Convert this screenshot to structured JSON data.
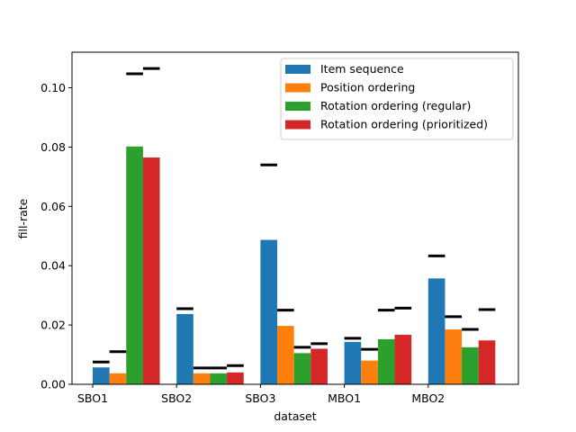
{
  "chart_data": {
    "type": "bar",
    "title": "",
    "xlabel": "dataset",
    "ylabel": "fill-rate",
    "ylim": [
      0,
      0.112
    ],
    "yticks": [
      0.0,
      0.02,
      0.04,
      0.06,
      0.08,
      0.1
    ],
    "ytick_labels": [
      "0.00",
      "0.02",
      "0.04",
      "0.06",
      "0.08",
      "0.10"
    ],
    "categories": [
      "SBO1",
      "SBO2",
      "SBO3",
      "MBO1",
      "MBO2"
    ],
    "series": [
      {
        "name": "Item sequence",
        "color": "#1f77b4",
        "values": [
          0.0057,
          0.0237,
          0.0487,
          0.0143,
          0.0357
        ],
        "markers": [
          0.0075,
          0.0255,
          0.074,
          0.0155,
          0.0433
        ]
      },
      {
        "name": "Position ordering",
        "color": "#ff7f0e",
        "values": [
          0.0037,
          0.0037,
          0.0197,
          0.008,
          0.0185
        ],
        "markers": [
          0.011,
          0.0055,
          0.025,
          0.0118,
          0.0228
        ]
      },
      {
        "name": "Rotation ordering (regular)",
        "color": "#2ca02c",
        "values": [
          0.0802,
          0.0037,
          0.0105,
          0.0152,
          0.0125
        ],
        "markers": [
          0.1047,
          0.0055,
          0.0125,
          0.025,
          0.0185
        ]
      },
      {
        "name": "Rotation ordering (prioritized)",
        "color": "#d62728",
        "values": [
          0.0765,
          0.004,
          0.012,
          0.0167,
          0.0148
        ],
        "markers": [
          0.1065,
          0.0063,
          0.0137,
          0.0257,
          0.0252
        ]
      }
    ],
    "grid": false,
    "legend_position": "top-right"
  }
}
